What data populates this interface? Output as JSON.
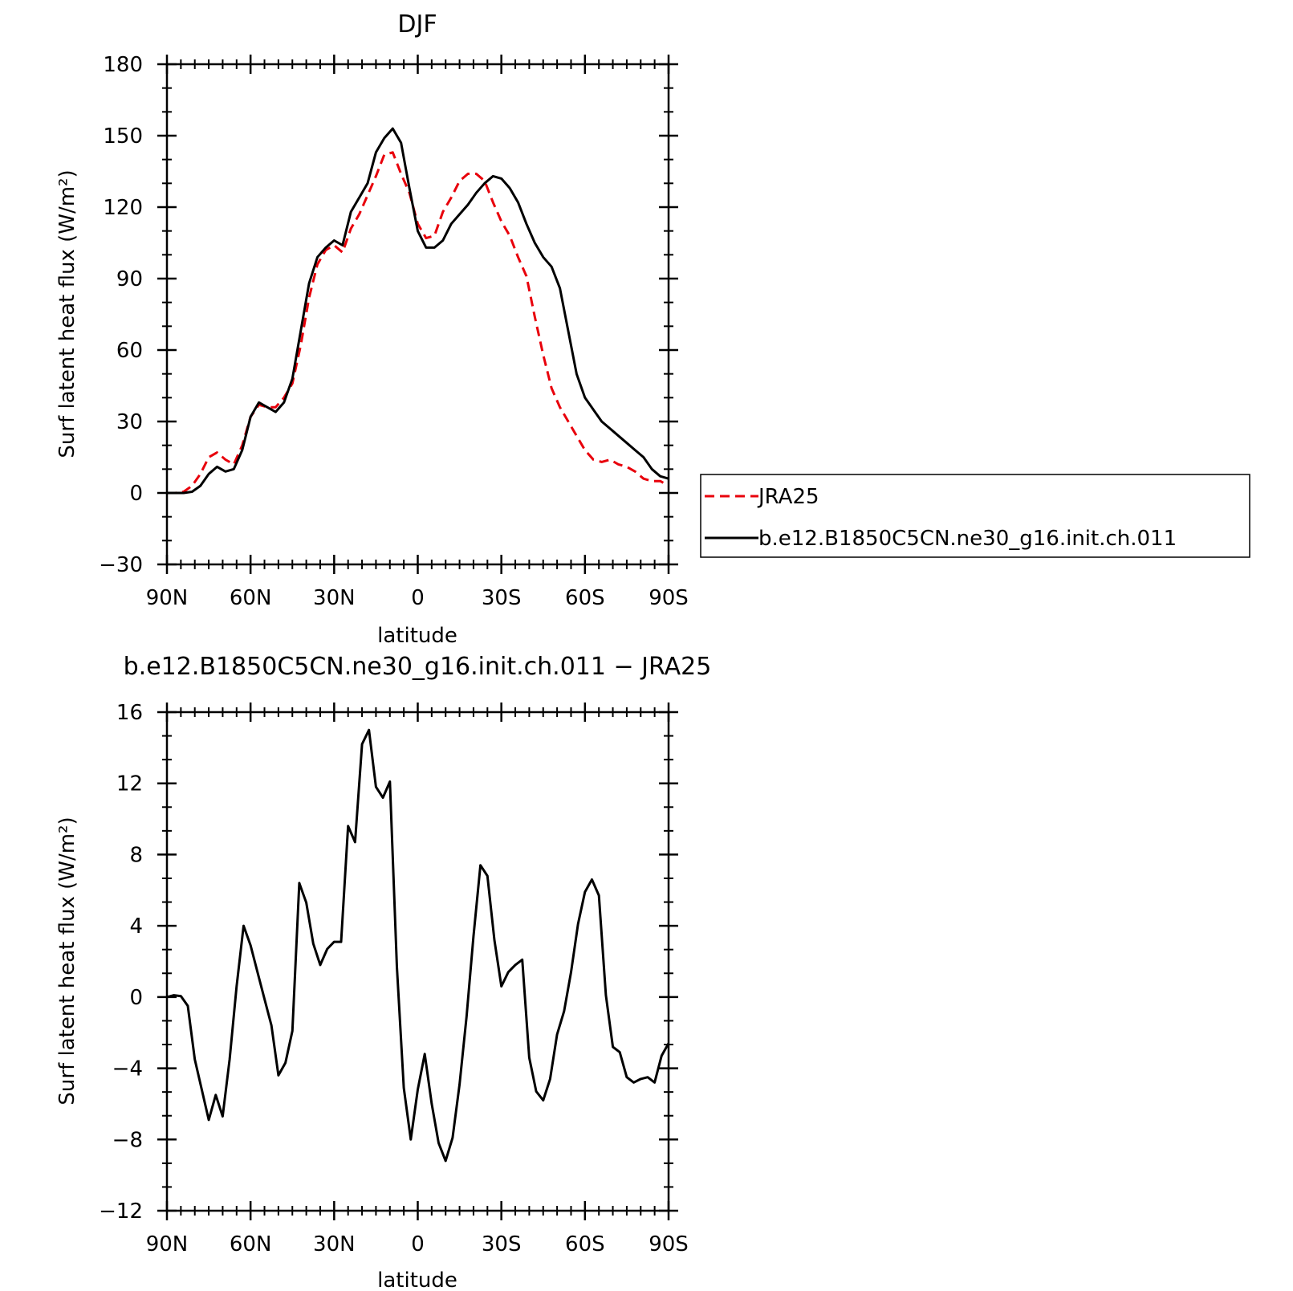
{
  "chart_data": [
    {
      "type": "line",
      "title": "DJF",
      "xlabel": "latitude",
      "ylabel": "Surf latent heat flux (W/m²)",
      "ylim": [
        -30,
        180
      ],
      "yticks": [
        -30,
        0,
        30,
        60,
        90,
        120,
        150,
        180
      ],
      "xlim": [
        90,
        -90
      ],
      "xticks": [
        90,
        60,
        30,
        0,
        -30,
        -60,
        -90
      ],
      "xticklabels": [
        "90N",
        "60N",
        "30N",
        "0",
        "30S",
        "60S",
        "90S"
      ],
      "legend": {
        "placement": "right",
        "entries": [
          "JRA25",
          "b.e12.B1850C5CN.ne30_g16.init.ch.011"
        ]
      },
      "series": [
        {
          "name": "JRA25",
          "color": "#e8000b",
          "dash": "dashed",
          "x": [
            90,
            87,
            84,
            81,
            78,
            75,
            72,
            69,
            66,
            63,
            60,
            57,
            54,
            51,
            48,
            45,
            42,
            39,
            36,
            33,
            30,
            27,
            24,
            21,
            18,
            15,
            12,
            9,
            6,
            3,
            0,
            -3,
            -6,
            -9,
            -12,
            -15,
            -18,
            -21,
            -24,
            -27,
            -30,
            -33,
            -36,
            -39,
            -42,
            -45,
            -48,
            -51,
            -54,
            -57,
            -60,
            -63,
            -66,
            -69,
            -72,
            -75,
            -78,
            -81,
            -84,
            -87,
            -90
          ],
          "values": [
            0,
            0,
            0.5,
            3,
            8,
            15,
            17,
            14,
            12,
            20,
            32,
            37,
            36,
            36,
            40,
            46,
            62,
            82,
            96,
            102,
            104,
            101,
            111,
            117,
            125,
            133,
            142,
            143,
            134,
            126,
            113,
            107,
            108,
            118,
            124,
            131,
            134,
            134,
            131,
            122,
            114,
            108,
            99,
            91,
            74,
            58,
            44,
            36,
            30,
            24,
            18,
            14,
            13,
            14,
            12,
            11,
            9,
            6,
            5,
            5,
            3
          ]
        },
        {
          "name": "b.e12.B1850C5CN.ne30_g16.init.ch.011",
          "color": "#000000",
          "dash": "solid",
          "x": [
            90,
            87,
            84,
            81,
            78,
            75,
            72,
            69,
            66,
            63,
            60,
            57,
            54,
            51,
            48,
            45,
            42,
            39,
            36,
            33,
            30,
            27,
            24,
            21,
            18,
            15,
            12,
            9,
            6,
            3,
            0,
            -3,
            -6,
            -9,
            -12,
            -15,
            -18,
            -21,
            -24,
            -27,
            -30,
            -33,
            -36,
            -39,
            -42,
            -45,
            -48,
            -51,
            -54,
            -57,
            -60,
            -63,
            -66,
            -69,
            -72,
            -75,
            -78,
            -81,
            -84,
            -87,
            -90
          ],
          "values": [
            0,
            0,
            0,
            0.5,
            3,
            8,
            11,
            9,
            10,
            18,
            32,
            38,
            36,
            34,
            38,
            48,
            68,
            88,
            99,
            103,
            106,
            104,
            118,
            124,
            130,
            143,
            149,
            153,
            147,
            128,
            110,
            103,
            103,
            106,
            113,
            117,
            121,
            126,
            130,
            133,
            132,
            128,
            122,
            113,
            105,
            99,
            95,
            86,
            68,
            50,
            40,
            35,
            30,
            27,
            24,
            21,
            18,
            15,
            10,
            7,
            6
          ]
        }
      ]
    },
    {
      "type": "line",
      "title": "b.e12.B1850C5CN.ne30_g16.init.ch.011 − JRA25",
      "xlabel": "latitude",
      "ylabel": "Surf latent heat flux (W/m²)",
      "ylim": [
        -12,
        16
      ],
      "yticks": [
        -12,
        -8,
        -4,
        0,
        4,
        8,
        12,
        16
      ],
      "xlim": [
        90,
        -90
      ],
      "xticks": [
        90,
        60,
        30,
        0,
        -30,
        -60,
        -90
      ],
      "xticklabels": [
        "90N",
        "60N",
        "30N",
        "0",
        "30S",
        "60S",
        "90S"
      ],
      "series": [
        {
          "color": "#000000",
          "dash": "solid",
          "x": [
            90,
            87.5,
            85,
            82.5,
            80,
            77.5,
            75,
            72.5,
            70,
            67.5,
            65,
            62.5,
            60,
            57.5,
            55,
            52.5,
            50,
            47.5,
            45,
            42.5,
            40,
            37.5,
            35,
            32.5,
            30,
            27.5,
            25,
            22.5,
            20,
            17.5,
            15,
            12.5,
            10,
            7.5,
            5,
            2.5,
            0,
            -2.5,
            -5,
            -7.5,
            -10,
            -12.5,
            -15,
            -17.5,
            -20,
            -22.5,
            -25,
            -27.5,
            -30,
            -32.5,
            -35,
            -37.5,
            -40,
            -42.5,
            -45,
            -47.5,
            -50,
            -52.5,
            -55,
            -57.5,
            -60,
            -62.5,
            -65,
            -67.5,
            -70,
            -72.5,
            -75,
            -77.5,
            -80,
            -82.5,
            -85,
            -87.5,
            -90
          ],
          "values": [
            0,
            0.1,
            0.05,
            -0.5,
            -3.5,
            -5.2,
            -6.9,
            -5.5,
            -6.7,
            -3.5,
            0.6,
            4.0,
            2.9,
            1.4,
            -0.1,
            -1.6,
            -4.4,
            -3.7,
            -1.9,
            6.4,
            5.3,
            3.0,
            1.8,
            2.7,
            3.1,
            3.1,
            9.6,
            8.7,
            14.2,
            15.0,
            11.8,
            11.2,
            12.1,
            1.7,
            -5.1,
            -8.0,
            -5.2,
            -3.2,
            -6.0,
            -8.2,
            -9.2,
            -7.9,
            -4.9,
            -1.1,
            3.4,
            7.4,
            6.8,
            3.2,
            0.6,
            1.4,
            1.8,
            2.1,
            -3.4,
            -5.3,
            -5.8,
            -4.6,
            -2.1,
            -0.8,
            1.4,
            4.1,
            5.9,
            6.6,
            5.7,
            0.1,
            -2.8,
            -3.1,
            -4.5,
            -4.8,
            -4.6,
            -4.5,
            -4.8,
            -3.3,
            -2.6
          ]
        }
      ]
    }
  ]
}
